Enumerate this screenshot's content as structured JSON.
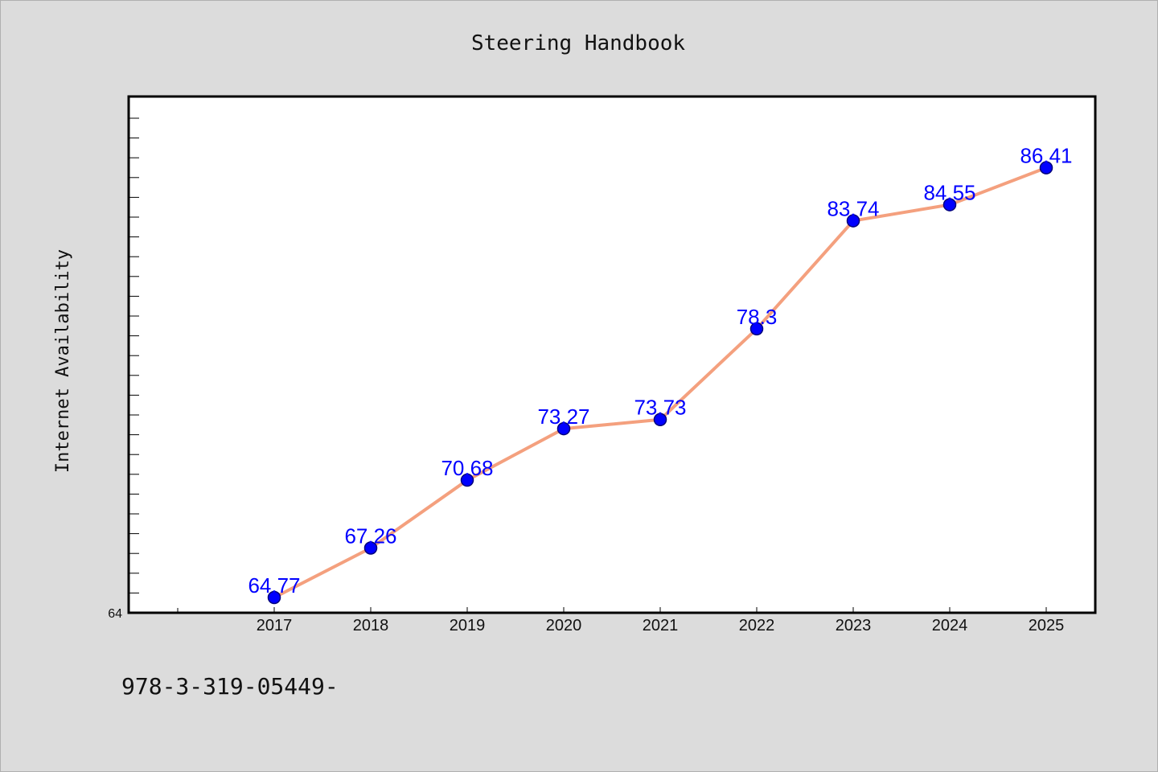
{
  "chart_data": {
    "type": "line",
    "title": "Steering Handbook",
    "xlabel": "",
    "ylabel": "Internet Availability",
    "categories": [
      "2017",
      "2018",
      "2019",
      "2020",
      "2021",
      "2022",
      "2023",
      "2024",
      "2025"
    ],
    "values": [
      64.77,
      67.26,
      70.68,
      73.27,
      73.73,
      78.3,
      83.74,
      84.55,
      86.41
    ],
    "value_labels": [
      "64.77",
      "67.26",
      "70.68",
      "73.27",
      "73.73",
      "78.3",
      "83.74",
      "84.55",
      "86.41"
    ],
    "ylim": [
      64,
      90
    ],
    "ytick_labels": [
      "64"
    ],
    "grid": false,
    "legend": "none",
    "colors": {
      "line": "#f4a07e",
      "marker": "#0000ff",
      "data_label": "#0000ff",
      "background": "#dcdcdc",
      "plot_background": "#ffffff"
    }
  },
  "footer": {
    "text": "978-3-319-05449-"
  }
}
